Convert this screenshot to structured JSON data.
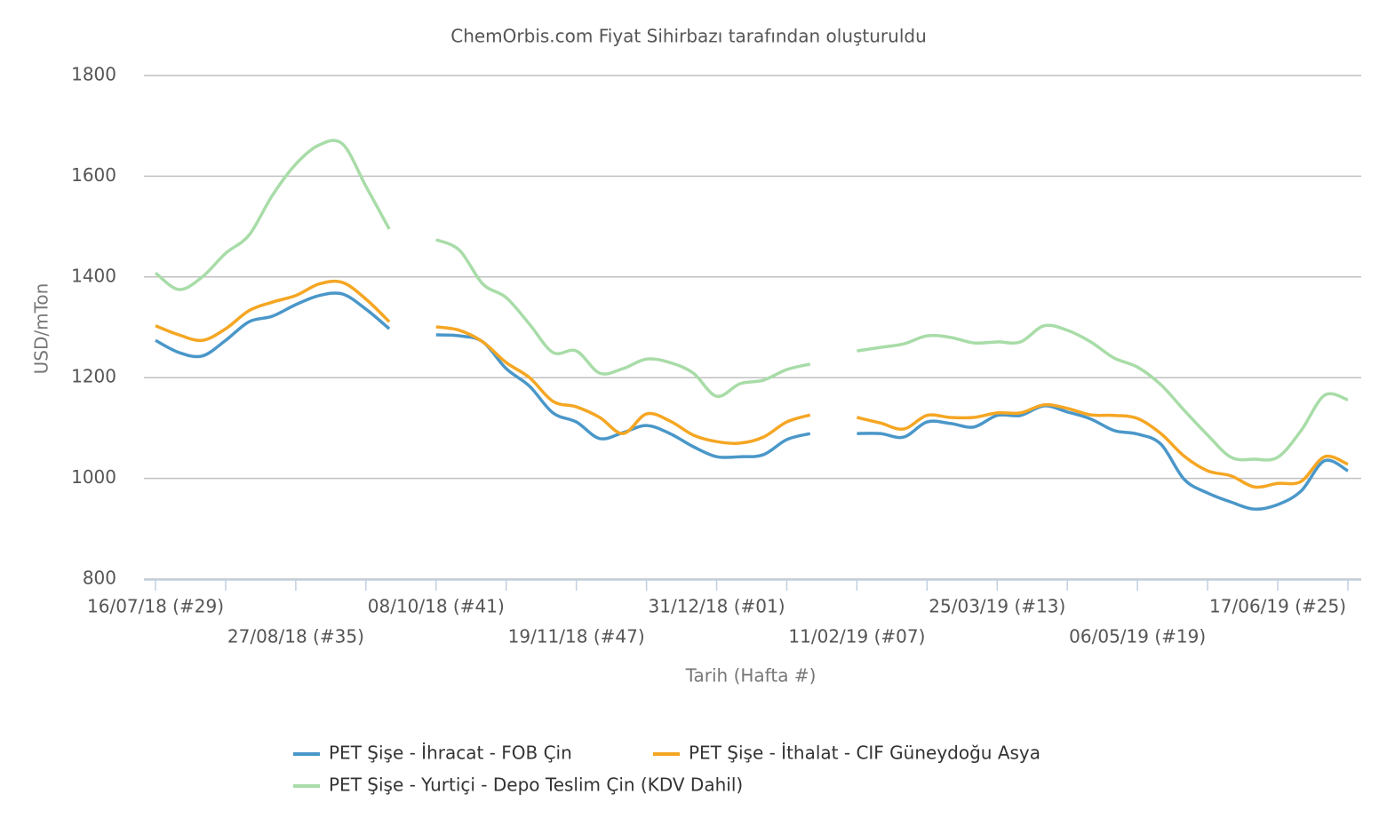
{
  "chart_data": {
    "type": "line",
    "title": "ChemOrbis.com Fiyat Sihirbazı tarafından oluşturuldu",
    "xlabel": "Tarih (Hafta #)",
    "ylabel": "USD/mTon",
    "categories": [
      "16/07/18 (#29)",
      null,
      null,
      null,
      null,
      null,
      "27/08/18 (#35)",
      null,
      null,
      null,
      null,
      null,
      "08/10/18 (#41)",
      null,
      null,
      null,
      null,
      null,
      "19/11/18 (#47)",
      null,
      null,
      null,
      null,
      null,
      "31/12/18 (#01)",
      null,
      null,
      null,
      null,
      null,
      "11/02/19 (#07)",
      null,
      null,
      null,
      null,
      null,
      "25/03/19 (#13)",
      null,
      null,
      null,
      null,
      null,
      "06/05/19 (#19)",
      null,
      null,
      null,
      null,
      null,
      "17/06/19 (#25)",
      null,
      null,
      null
    ],
    "ylim": [
      800,
      1800
    ],
    "yticks": [
      800,
      1000,
      1200,
      1400,
      1600,
      1800
    ],
    "grid": true,
    "legend": "bottom",
    "series": [
      {
        "name": "PET Şişe - İhracat - FOB Çin",
        "color": "#4a97c9",
        "values": [
          1274,
          1250,
          1243,
          1274,
          1311,
          1322,
          1345,
          1363,
          1366,
          1336,
          1297,
          null,
          1285,
          1283,
          1271,
          1218,
          1183,
          1130,
          1112,
          1079,
          1091,
          1105,
          1089,
          1063,
          1043,
          1043,
          1047,
          1077,
          1089,
          null,
          1089,
          1089,
          1082,
          1112,
          1109,
          1102,
          1125,
          1125,
          1144,
          1132,
          1118,
          1095,
          1088,
          1068,
          998,
          971,
          953,
          939,
          948,
          975,
          1035,
          1015
        ]
      },
      {
        "name": "PET Şişe - İthalat - CIF Güneydoğu Asya",
        "color": "#f5a623",
        "values": [
          1303,
          1285,
          1274,
          1297,
          1333,
          1350,
          1363,
          1386,
          1389,
          1356,
          1311,
          null,
          1301,
          1294,
          1271,
          1230,
          1200,
          1153,
          1142,
          1121,
          1089,
          1128,
          1114,
          1086,
          1073,
          1070,
          1082,
          1112,
          1126,
          null,
          1121,
          1110,
          1098,
          1125,
          1121,
          1121,
          1130,
          1130,
          1146,
          1139,
          1126,
          1125,
          1119,
          1089,
          1044,
          1015,
          1005,
          983,
          990,
          994,
          1043,
          1028
        ]
      },
      {
        "name": "PET Şişe - Yurtiçi - Depo Teslim Çin (KDV Dahil)",
        "color": "#a8dca8",
        "values": [
          1408,
          1375,
          1400,
          1447,
          1483,
          1562,
          1624,
          1662,
          1664,
          1580,
          1495,
          null,
          1474,
          1453,
          1386,
          1359,
          1306,
          1250,
          1253,
          1209,
          1218,
          1237,
          1230,
          1209,
          1163,
          1188,
          1195,
          1216,
          1227,
          null,
          1253,
          1260,
          1267,
          1283,
          1280,
          1269,
          1271,
          1271,
          1303,
          1294,
          1271,
          1239,
          1221,
          1186,
          1135,
          1086,
          1042,
          1038,
          1042,
          1095,
          1165,
          1156
        ]
      }
    ]
  }
}
